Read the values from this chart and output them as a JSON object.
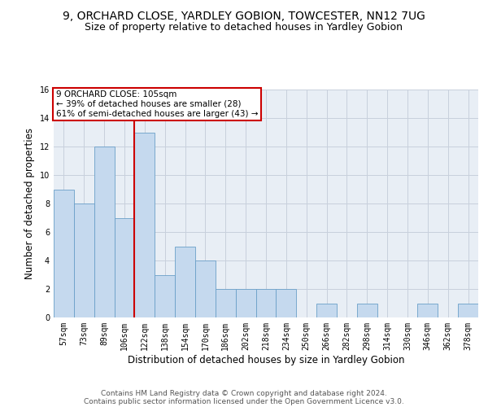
{
  "title": "9, ORCHARD CLOSE, YARDLEY GOBION, TOWCESTER, NN12 7UG",
  "subtitle": "Size of property relative to detached houses in Yardley Gobion",
  "xlabel": "Distribution of detached houses by size in Yardley Gobion",
  "ylabel": "Number of detached properties",
  "categories": [
    "57sqm",
    "73sqm",
    "89sqm",
    "106sqm",
    "122sqm",
    "138sqm",
    "154sqm",
    "170sqm",
    "186sqm",
    "202sqm",
    "218sqm",
    "234sqm",
    "250sqm",
    "266sqm",
    "282sqm",
    "298sqm",
    "314sqm",
    "330sqm",
    "346sqm",
    "362sqm",
    "378sqm"
  ],
  "values": [
    9,
    8,
    12,
    7,
    13,
    3,
    5,
    4,
    2,
    2,
    2,
    2,
    0,
    1,
    0,
    1,
    0,
    0,
    1,
    0,
    1
  ],
  "bar_color": "#c5d9ee",
  "bar_edge_color": "#6a9fc8",
  "vline_x": 3.5,
  "vline_color": "#cc0000",
  "annotation_text": "9 ORCHARD CLOSE: 105sqm\n← 39% of detached houses are smaller (28)\n61% of semi-detached houses are larger (43) →",
  "annotation_box_color": "#ffffff",
  "annotation_box_edge_color": "#cc0000",
  "ylim": [
    0,
    16
  ],
  "yticks": [
    0,
    2,
    4,
    6,
    8,
    10,
    12,
    14,
    16
  ],
  "grid_color": "#c8d0dc",
  "axes_bg_color": "#e8eef5",
  "background_color": "#ffffff",
  "footer_line1": "Contains HM Land Registry data © Crown copyright and database right 2024.",
  "footer_line2": "Contains public sector information licensed under the Open Government Licence v3.0.",
  "title_fontsize": 10,
  "subtitle_fontsize": 9,
  "xlabel_fontsize": 8.5,
  "ylabel_fontsize": 8.5,
  "tick_fontsize": 7,
  "annotation_fontsize": 7.5,
  "footer_fontsize": 6.5
}
